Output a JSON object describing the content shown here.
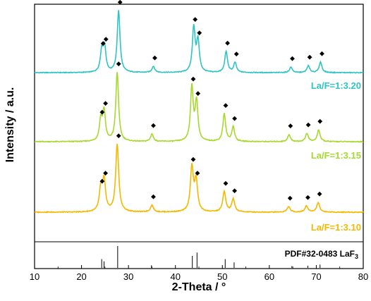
{
  "chart_data": {
    "type": "line",
    "xlabel": "2-Theta / °",
    "ylabel": "Intensity / a.u.",
    "xlim": [
      10,
      80
    ],
    "xticks": [
      10,
      20,
      30,
      40,
      50,
      60,
      70,
      80
    ],
    "grid": false,
    "marker_symbol": "◆",
    "series": [
      {
        "name": "La/F=1:3.20",
        "color": "#2ec4c4",
        "peaks": [
          24.3,
          24.9,
          27.9,
          35.3,
          43.9,
          44.8,
          50.8,
          52.7,
          64.6,
          68.3,
          70.9
        ],
        "peak_heights": [
          0.33,
          0.4,
          1.0,
          0.1,
          0.72,
          0.5,
          0.34,
          0.16,
          0.09,
          0.11,
          0.17
        ]
      },
      {
        "name": "La/F=1:3.15",
        "color": "#a6d92e",
        "peaks": [
          24.1,
          24.8,
          27.6,
          35.0,
          43.5,
          44.5,
          50.4,
          52.3,
          64.2,
          68.0,
          70.5
        ],
        "peak_heights": [
          0.3,
          0.43,
          1.0,
          0.11,
          0.78,
          0.57,
          0.4,
          0.21,
          0.1,
          0.12,
          0.17
        ]
      },
      {
        "name": "La/F=1:3.10",
        "color": "#f5b800",
        "peaks": [
          24.1,
          24.8,
          27.6,
          35.0,
          43.5,
          44.4,
          50.4,
          52.3,
          64.1,
          67.9,
          70.4
        ],
        "peak_heights": [
          0.33,
          0.45,
          1.0,
          0.1,
          0.65,
          0.45,
          0.3,
          0.19,
          0.08,
          0.09,
          0.14
        ]
      }
    ],
    "reference": {
      "label": "PDF#32-0483 LaF",
      "label_subscript": "3",
      "lines": [
        {
          "x": 24.3,
          "h": 0.4
        },
        {
          "x": 24.8,
          "h": 0.3
        },
        {
          "x": 27.7,
          "h": 1.0
        },
        {
          "x": 34.9,
          "h": 0.12
        },
        {
          "x": 43.6,
          "h": 0.55
        },
        {
          "x": 44.6,
          "h": 0.7
        },
        {
          "x": 50.6,
          "h": 0.4
        },
        {
          "x": 52.5,
          "h": 0.25
        },
        {
          "x": 64.8,
          "h": 0.08
        },
        {
          "x": 68.2,
          "h": 0.1
        },
        {
          "x": 70.8,
          "h": 0.15
        }
      ]
    }
  }
}
